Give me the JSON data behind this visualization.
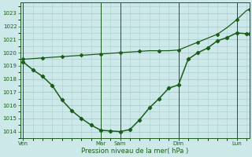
{
  "xlabel": "Pression niveau de la mer( hPa )",
  "bg_color": "#cce8e8",
  "grid_color": "#aacccc",
  "line_color": "#1a5c1a",
  "marker_color": "#1a5c1a",
  "ylim": [
    1013.5,
    1023.8
  ],
  "yticks": [
    1014,
    1015,
    1016,
    1017,
    1018,
    1019,
    1020,
    1021,
    1022,
    1023
  ],
  "day_labels": [
    "Ven",
    "",
    "Mar",
    "Sam",
    "",
    "Dim",
    "",
    "Lun"
  ],
  "vline_positions": [
    0,
    8,
    10,
    16,
    22
  ],
  "vline_labels": [
    "Ven",
    "Mar",
    "Sam",
    "Dim",
    "Lun"
  ],
  "xlim": [
    -0.3,
    23.3
  ],
  "series1_x": [
    0,
    1,
    2,
    3,
    4,
    5,
    6,
    7,
    8,
    9,
    10,
    11,
    12,
    13,
    14,
    15,
    16,
    17,
    18,
    19,
    20,
    21,
    22,
    23,
    23.3
  ],
  "series1_y": [
    1019.3,
    1018.7,
    1018.2,
    1017.5,
    1016.4,
    1015.6,
    1015.0,
    1014.5,
    1014.1,
    1014.05,
    1014.0,
    1014.15,
    1014.9,
    1015.8,
    1016.5,
    1017.3,
    1017.55,
    1019.5,
    1020.0,
    1020.35,
    1020.9,
    1021.15,
    1021.5,
    1021.45,
    1021.45
  ],
  "series2_x": [
    0,
    1,
    2,
    3,
    4,
    5,
    6,
    7,
    8,
    9,
    10,
    11,
    12,
    13,
    14,
    15,
    16,
    17,
    18,
    19,
    20,
    21,
    22,
    23,
    23.3
  ],
  "series2_y": [
    1019.5,
    1019.55,
    1019.6,
    1019.65,
    1019.7,
    1019.75,
    1019.8,
    1019.85,
    1019.9,
    1019.95,
    1020.0,
    1020.05,
    1020.1,
    1020.15,
    1020.15,
    1020.15,
    1020.2,
    1020.5,
    1020.8,
    1021.1,
    1021.4,
    1021.9,
    1022.5,
    1023.2,
    1023.3
  ]
}
